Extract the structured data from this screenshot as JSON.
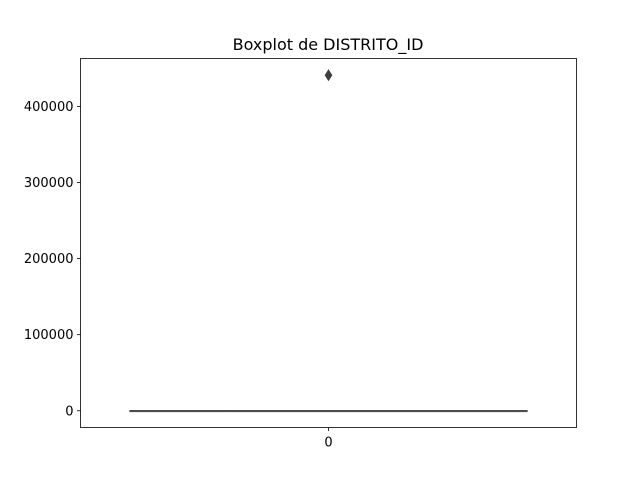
{
  "chart_data": {
    "type": "boxplot",
    "title": "Boxplot de DISTRITO_ID",
    "xlabel": "",
    "ylabel": "",
    "categories": [
      "0"
    ],
    "ylim": [
      -22000,
      463000
    ],
    "yticks": [
      0,
      100000,
      200000,
      300000,
      400000
    ],
    "ytick_labels": [
      "0",
      "100000",
      "200000",
      "300000",
      "400000"
    ],
    "boxes": [
      {
        "category": "0",
        "whisker_low": 0,
        "q1": 0,
        "median": 0,
        "q3": 0,
        "whisker_high": 0,
        "outliers": [
          441000
        ]
      }
    ],
    "grid": false,
    "legend": "none",
    "colors": {
      "box": "#4c4c4c",
      "outlier": "#3d3d3d",
      "axes": "#000000"
    }
  }
}
